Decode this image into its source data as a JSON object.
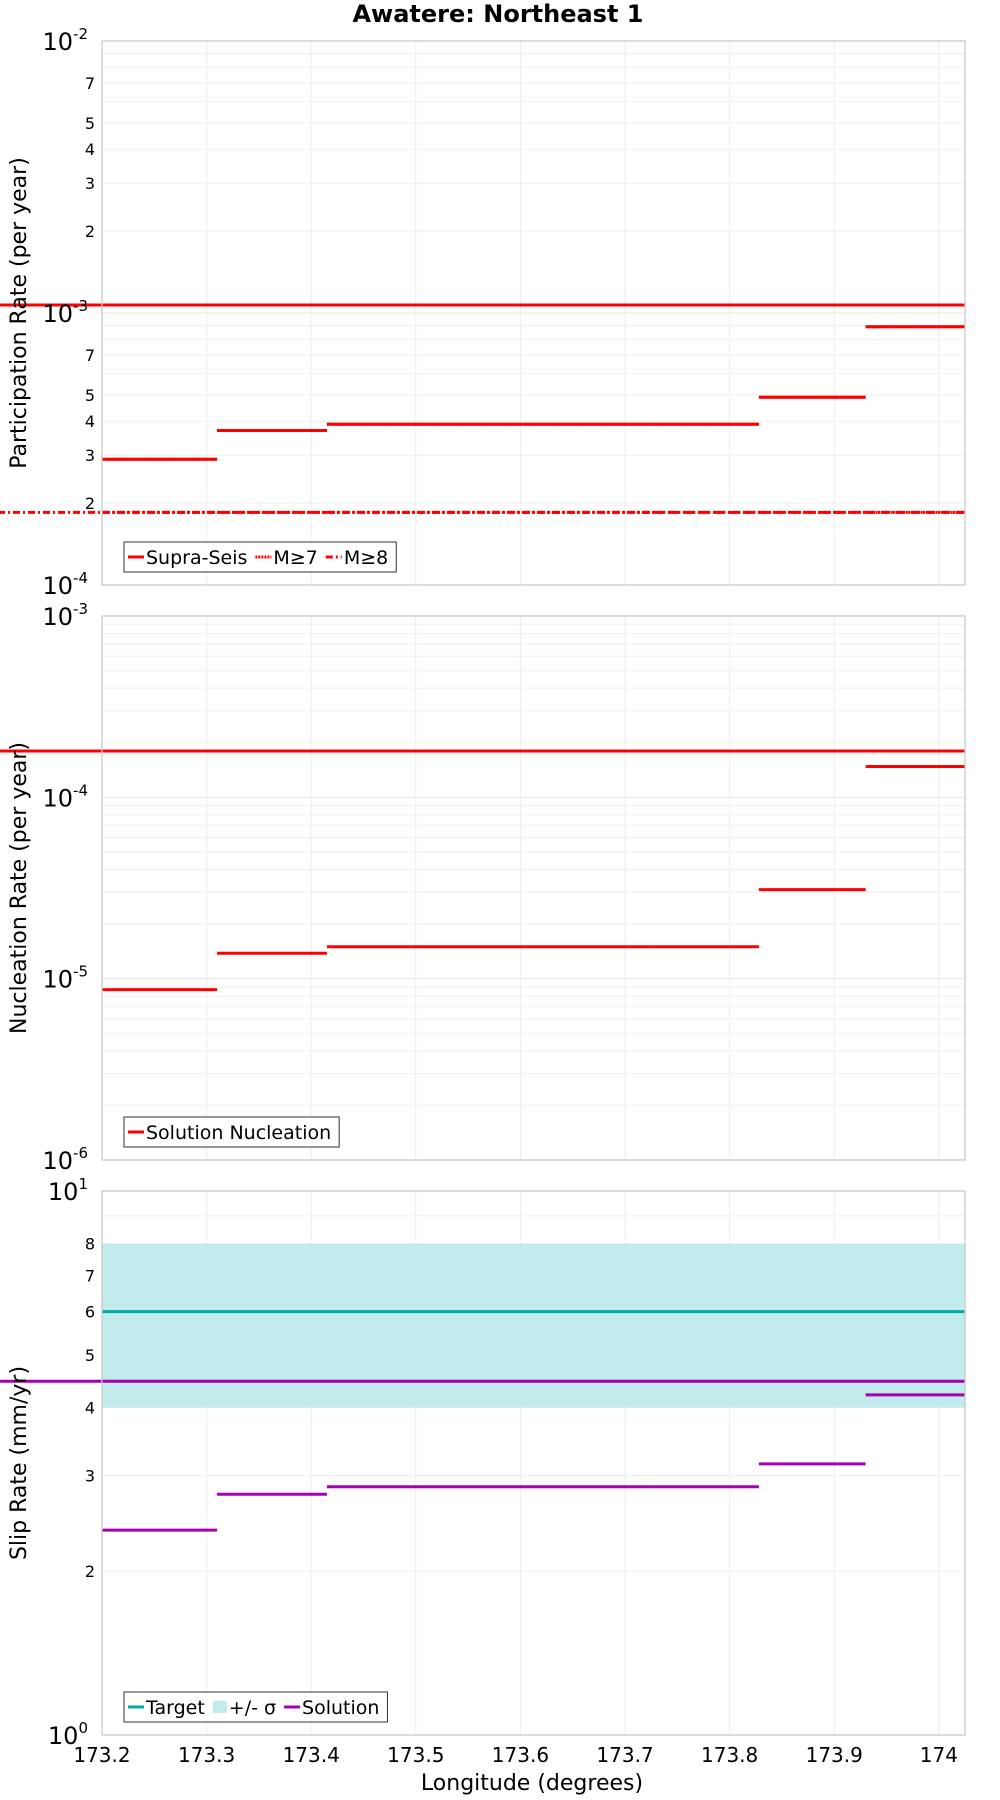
{
  "chart_data": {
    "type": "line",
    "title": "Awatere: Northeast 1",
    "xlabel": "Longitude (degrees)",
    "xlim": [
      173.2,
      174.025
    ],
    "x_ticks": [
      "173.2",
      "173.3",
      "173.4",
      "173.5",
      "173.6",
      "173.7",
      "173.8",
      "173.9",
      "174"
    ],
    "segment_edges": [
      173.2,
      173.31,
      173.415,
      173.727,
      173.828,
      173.93,
      174.025
    ],
    "panels": [
      {
        "ylabel": "Participation Rate (per year)",
        "yscale": "log",
        "ylim": [
          0.0001,
          0.01
        ],
        "major_ticks": [
          {
            "base": "10",
            "exp": "-2"
          },
          {
            "base": "10",
            "exp": "-3"
          },
          {
            "base": "10",
            "exp": "-4"
          }
        ],
        "minor_tick_labels": [
          "7",
          "5",
          "4",
          "3",
          "2",
          "7",
          "5",
          "4",
          "3",
          "2"
        ],
        "series": [
          {
            "name": "Supra-Seis",
            "color": "#ff0000",
            "style": "solid",
            "values": [
              0.00029,
              0.00037,
              0.00039,
              0.00039,
              0.00049,
              0.00089,
              0.00107
            ]
          },
          {
            "name": "M≥7",
            "color": "#ff0000",
            "style": "dotted",
            "values": [
              0.00029,
              0.00037,
              0.00039,
              0.00039,
              0.00049,
              0.00089,
              0.00107
            ]
          },
          {
            "name": "M≥8",
            "color": "#ff0000",
            "style": "dashdot",
            "values": [
              0.000185,
              0.000185,
              0.000185,
              0.000185,
              0.000185,
              0.000185,
              0.000185
            ]
          }
        ],
        "legend": [
          "Supra-Seis",
          "M≥7",
          "M≥8"
        ]
      },
      {
        "ylabel": "Nucleation Rate (per year)",
        "yscale": "log",
        "ylim": [
          1e-06,
          0.001
        ],
        "major_ticks": [
          {
            "base": "10",
            "exp": "-3"
          },
          {
            "base": "10",
            "exp": "-4"
          },
          {
            "base": "10",
            "exp": "-5"
          },
          {
            "base": "10",
            "exp": "-6"
          }
        ],
        "minor_tick_labels": [],
        "series": [
          {
            "name": "Solution Nucleation",
            "color": "#ff0000",
            "style": "solid",
            "values": [
              8.7e-06,
              1.38e-05,
              1.5e-05,
              1.5e-05,
              3.1e-05,
              0.000148,
              0.00018
            ]
          }
        ],
        "legend": [
          "Solution Nucleation"
        ]
      },
      {
        "ylabel": "Slip Rate (mm/yr)",
        "yscale": "log",
        "ylim": [
          1,
          10
        ],
        "major_ticks": [
          {
            "base": "10",
            "exp": "1"
          },
          {
            "base": "10",
            "exp": "0"
          }
        ],
        "minor_tick_labels": [
          "8",
          "7",
          "6",
          "5",
          "4",
          "3",
          "2"
        ],
        "target": {
          "name": "Target",
          "value": 6.0,
          "color": "#00a7a7"
        },
        "band": {
          "name": "+/- σ",
          "low": 4.0,
          "high": 8.0,
          "color": "#c2ecec"
        },
        "series": [
          {
            "name": "Solution",
            "color": "#a600b2",
            "style": "solid",
            "values": [
              2.38,
              2.77,
              2.86,
              2.86,
              3.15,
              4.22,
              4.47
            ]
          }
        ],
        "legend": [
          "Target",
          "+/- σ",
          "Solution"
        ]
      }
    ]
  }
}
